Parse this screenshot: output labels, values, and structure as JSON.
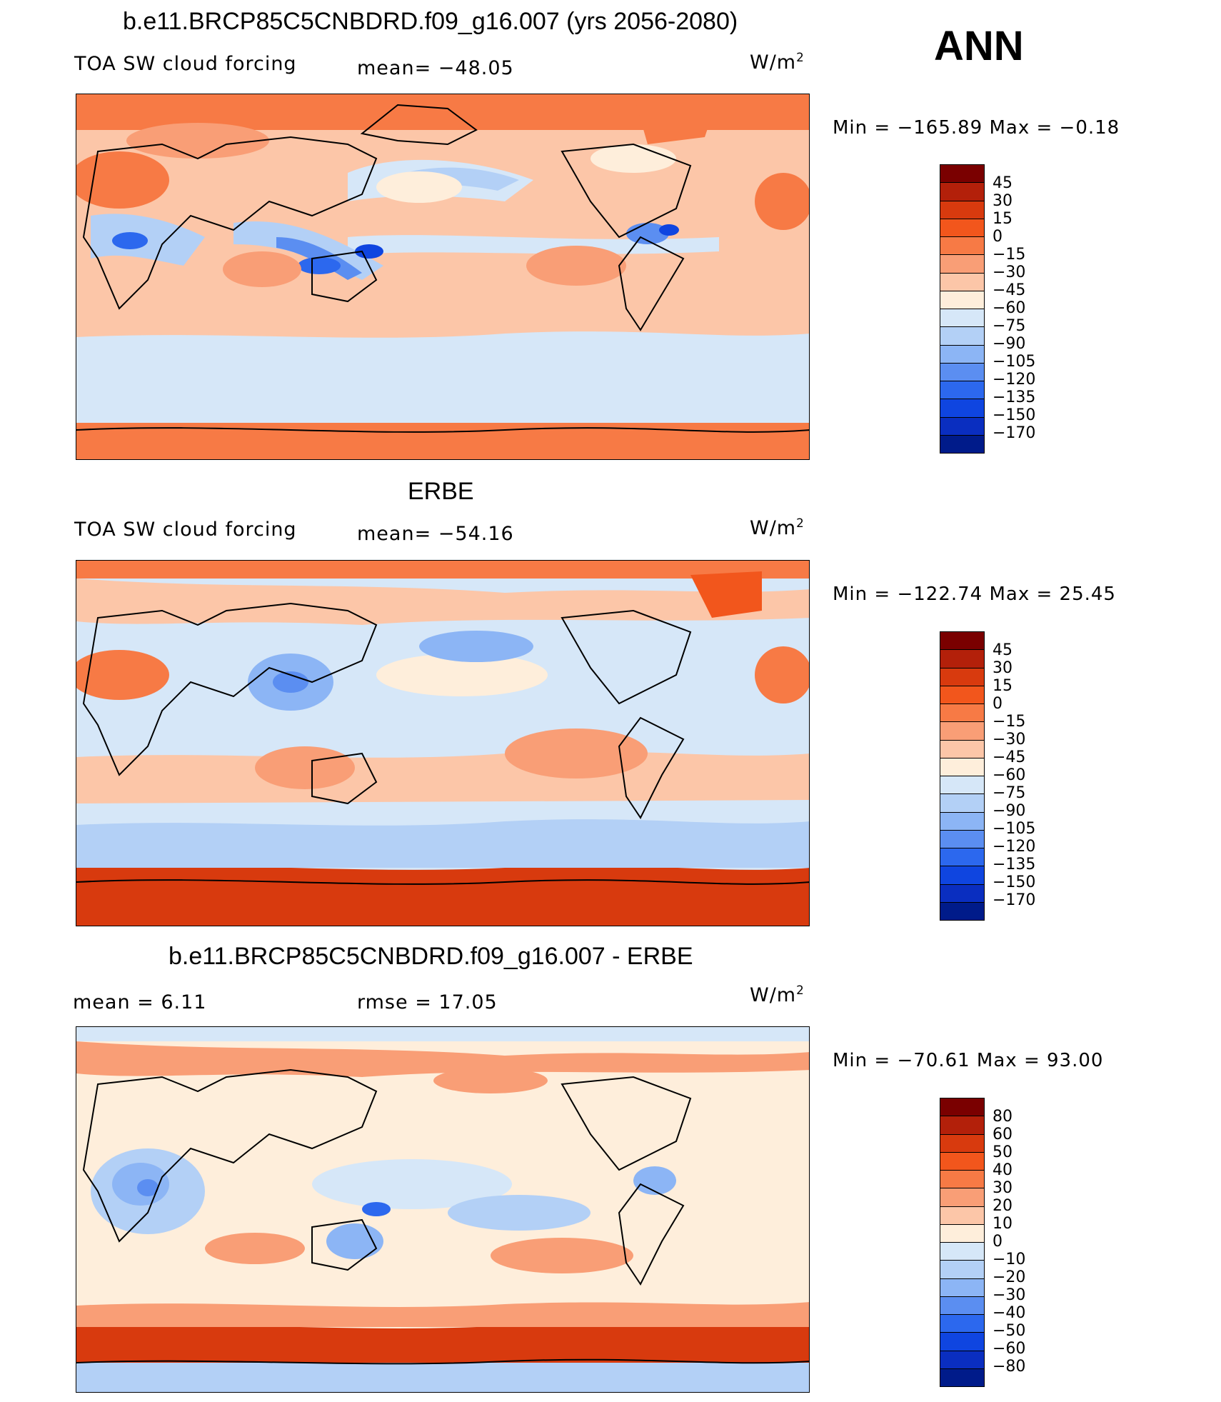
{
  "season_label": "ANN",
  "panels": [
    {
      "title": "b.e11.BRCP85C5CNBDRD.f09_g16.007 (yrs 2056-2080)",
      "left_label": "TOA SW cloud forcing",
      "center_label": "mean=  −48.05",
      "units": "W/m",
      "units_exponent": "2",
      "minmax": "Min  =  −165.89  Max  =    −0.18",
      "colorbar_colors": [
        "#7a0000",
        "#b3200a",
        "#d83a0e",
        "#f2561c",
        "#f77a45",
        "#f99e76",
        "#fcc6a8",
        "#feeedb",
        "#d6e7f8",
        "#b3d0f6",
        "#8cb5f5",
        "#5b8ef1",
        "#2c68ee",
        "#0f45e0",
        "#0a2ec0",
        "#001b8a"
      ],
      "colorbar_ticks": [
        "45",
        "30",
        "15",
        "0",
        "−15",
        "−30",
        "−45",
        "−60",
        "−75",
        "−90",
        "−105",
        "−120",
        "−135",
        "−150",
        "−170"
      ]
    },
    {
      "title": "ERBE",
      "left_label": "TOA SW cloud forcing",
      "center_label": "mean=  −54.16",
      "units": "W/m",
      "units_exponent": "2",
      "minmax": "Min  =  −122.74  Max  =    25.45",
      "colorbar_colors": [
        "#7a0000",
        "#b3200a",
        "#d83a0e",
        "#f2561c",
        "#f77a45",
        "#f99e76",
        "#fcc6a8",
        "#feeedb",
        "#d6e7f8",
        "#b3d0f6",
        "#8cb5f5",
        "#5b8ef1",
        "#2c68ee",
        "#0f45e0",
        "#0a2ec0",
        "#001b8a"
      ],
      "colorbar_ticks": [
        "45",
        "30",
        "15",
        "0",
        "−15",
        "−30",
        "−45",
        "−60",
        "−75",
        "−90",
        "−105",
        "−120",
        "−135",
        "−150",
        "−170"
      ]
    },
    {
      "title": "b.e11.BRCP85C5CNBDRD.f09_g16.007 - ERBE",
      "left_label": "mean  =      6.11",
      "center_label": "rmse  =     17.05",
      "units": "W/m",
      "units_exponent": "2",
      "minmax": "Min  =  −70.61  Max  =    93.00",
      "colorbar_colors": [
        "#7a0000",
        "#b3200a",
        "#d83a0e",
        "#f2561c",
        "#f77a45",
        "#f99e76",
        "#fcc6a8",
        "#feeedb",
        "#d6e7f8",
        "#b3d0f6",
        "#8cb5f5",
        "#5b8ef1",
        "#2c68ee",
        "#0f45e0",
        "#0a2ec0",
        "#001b8a"
      ],
      "colorbar_ticks": [
        "80",
        "60",
        "50",
        "40",
        "30",
        "20",
        "10",
        "0",
        "−10",
        "−20",
        "−30",
        "−40",
        "−50",
        "−60",
        "−80"
      ]
    }
  ]
}
